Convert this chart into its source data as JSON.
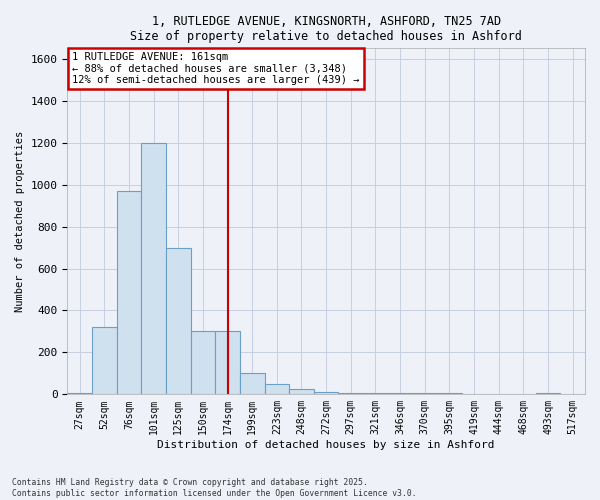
{
  "title_line1": "1, RUTLEDGE AVENUE, KINGSNORTH, ASHFORD, TN25 7AD",
  "title_line2": "Size of property relative to detached houses in Ashford",
  "xlabel": "Distribution of detached houses by size in Ashford",
  "ylabel": "Number of detached properties",
  "bin_labels": [
    "27sqm",
    "52sqm",
    "76sqm",
    "101sqm",
    "125sqm",
    "150sqm",
    "174sqm",
    "199sqm",
    "223sqm",
    "248sqm",
    "272sqm",
    "297sqm",
    "321sqm",
    "346sqm",
    "370sqm",
    "395sqm",
    "419sqm",
    "444sqm",
    "468sqm",
    "493sqm",
    "517sqm"
  ],
  "bar_heights": [
    5,
    320,
    970,
    1200,
    700,
    300,
    300,
    100,
    50,
    25,
    10,
    8,
    5,
    5,
    5,
    5,
    3,
    3,
    3,
    8,
    3
  ],
  "bar_color": "#cfe0ef",
  "bar_edge_color": "#6aa0c8",
  "red_line_x": 6,
  "vline_color": "#cc0000",
  "annotation_title": "1 RUTLEDGE AVENUE: 161sqm",
  "annotation_line1": "← 88% of detached houses are smaller (3,348)",
  "annotation_line2": "12% of semi-detached houses are larger (439) →",
  "annotation_box_color": "#ffffff",
  "annotation_box_edge": "#cc0000",
  "ylim": [
    0,
    1650
  ],
  "yticks": [
    0,
    200,
    400,
    600,
    800,
    1000,
    1200,
    1400,
    1600
  ],
  "footnote1": "Contains HM Land Registry data © Crown copyright and database right 2025.",
  "footnote2": "Contains public sector information licensed under the Open Government Licence v3.0.",
  "background_color": "#eef2f8",
  "plot_bg_color": "#eef2f8",
  "grid_color": "#c5cfe0"
}
